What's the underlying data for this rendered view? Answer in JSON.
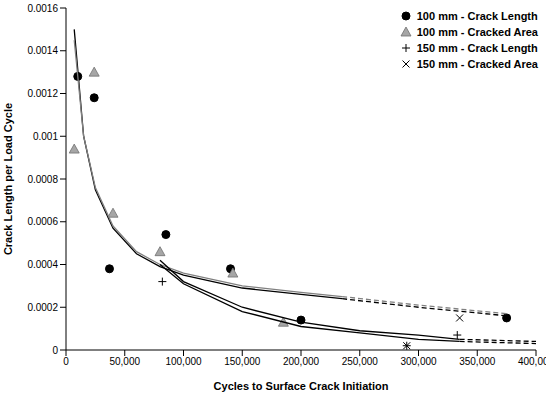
{
  "chart_data": {
    "type": "scatter",
    "xlabel": "Cycles to Surface Crack Initiation",
    "ylabel": "Crack Length per Load Cycle",
    "legend": "upper right",
    "grid": false,
    "xlim": [
      0,
      400000
    ],
    "ylim": [
      0,
      0.0016
    ],
    "xticks": [
      0,
      {
        "value": 50000,
        "label": "50,000"
      },
      {
        "value": 100000,
        "label": "100,000"
      },
      {
        "value": 150000,
        "label": "150,000"
      },
      {
        "value": 200000,
        "label": "200,000"
      },
      {
        "value": 250000,
        "label": "250,000"
      },
      {
        "value": 300000,
        "label": "300,000"
      },
      {
        "value": 350000,
        "label": "350,000"
      },
      {
        "value": 400000,
        "label": "400,000"
      }
    ],
    "yticks": [
      0,
      0.0002,
      0.0004,
      0.0006,
      0.0008,
      0.001,
      0.0012,
      0.0014,
      0.0016
    ],
    "series": [
      {
        "name": "100 mm - Crack Length",
        "type": "scatter",
        "marker": "circle",
        "color": "#000000",
        "x": [
          10000,
          24000,
          37000,
          85000,
          140000,
          200000,
          375000
        ],
        "values": [
          0.00128,
          0.00118,
          0.00038,
          0.00054,
          0.00038,
          0.00014,
          0.00015
        ]
      },
      {
        "name": "100 mm - Cracked Area",
        "type": "scatter",
        "marker": "triangle",
        "color": "#a6a6a6",
        "x": [
          7000,
          24000,
          40000,
          80000,
          142000,
          185000
        ],
        "values": [
          0.00094,
          0.0013,
          0.00064,
          0.00046,
          0.00036,
          0.00013
        ]
      },
      {
        "name": "150 mm - Crack Length",
        "type": "scatter",
        "marker": "plus",
        "color": "#000000",
        "x": [
          82000,
          290000,
          333000
        ],
        "values": [
          0.00032,
          2e-05,
          7e-05
        ]
      },
      {
        "name": "150 mm - Cracked Area",
        "type": "scatter",
        "marker": "cross",
        "color": "#000000",
        "x": [
          290000,
          335000
        ],
        "values": [
          2e-05,
          0.00015
        ]
      },
      {
        "type": "line",
        "line_style": "solid",
        "color": "#000000",
        "x": [
          7000,
          15000,
          25000,
          40000,
          60000,
          80000,
          100000,
          150000,
          200000,
          235000
        ],
        "values": [
          0.0015,
          0.001,
          0.00075,
          0.00057,
          0.00045,
          0.00039,
          0.00035,
          0.00029,
          0.00026,
          0.00024
        ]
      },
      {
        "type": "line",
        "line_style": "dashed",
        "color": "#000000",
        "x": [
          235000,
          300000,
          375000
        ],
        "values": [
          0.00024,
          0.0002,
          0.00016
        ]
      },
      {
        "type": "line",
        "line_style": "solid",
        "color": "#808080",
        "x": [
          7000,
          15000,
          25000,
          40000,
          60000,
          80000,
          100000,
          150000,
          200000,
          235000
        ],
        "values": [
          0.00145,
          0.001,
          0.00076,
          0.00058,
          0.00046,
          0.0004,
          0.00036,
          0.0003,
          0.00027,
          0.00025
        ]
      },
      {
        "type": "line",
        "line_style": "dashed",
        "color": "#808080",
        "x": [
          235000,
          300000,
          375000
        ],
        "values": [
          0.00025,
          0.00021,
          0.00017
        ]
      },
      {
        "type": "line",
        "line_style": "solid",
        "color": "#000000",
        "x": [
          80000,
          100000,
          150000,
          200000,
          250000,
          300000,
          335000
        ],
        "values": [
          0.00042,
          0.00032,
          0.0002,
          0.00013,
          9e-05,
          7e-05,
          5e-05
        ]
      },
      {
        "type": "line",
        "line_style": "dashed",
        "color": "#000000",
        "x": [
          335000,
          400000
        ],
        "values": [
          5e-05,
          4e-05
        ]
      },
      {
        "type": "line",
        "line_style": "solid",
        "color": "#000000",
        "x": [
          80000,
          100000,
          150000,
          200000,
          250000,
          300000,
          335000
        ],
        "values": [
          0.0004,
          0.00031,
          0.00018,
          0.00011,
          8e-05,
          5e-05,
          4e-05
        ]
      },
      {
        "type": "line",
        "line_style": "dashed",
        "color": "#000000",
        "x": [
          335000,
          400000
        ],
        "values": [
          4e-05,
          3e-05
        ]
      }
    ]
  }
}
